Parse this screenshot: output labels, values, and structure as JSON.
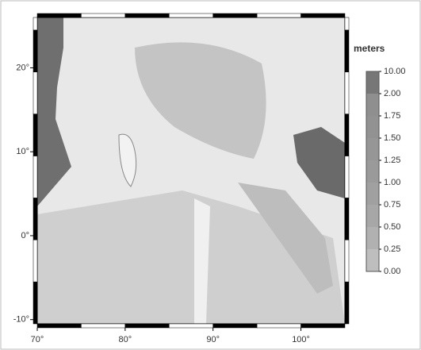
{
  "map": {
    "xlim": [
      70,
      105
    ],
    "ylim": [
      -10.5,
      26
    ],
    "xticks": [
      {
        "value": 70,
        "label": "70°"
      },
      {
        "value": 80,
        "label": "80°"
      },
      {
        "value": 90,
        "label": "90°"
      },
      {
        "value": 100,
        "label": "100°"
      }
    ],
    "yticks": [
      {
        "value": -10,
        "label": "-10°"
      },
      {
        "value": 0,
        "label": "0°"
      },
      {
        "value": 10,
        "label": "10°"
      },
      {
        "value": 20,
        "label": "20°"
      }
    ]
  },
  "colorbar": {
    "title": "meters",
    "ticks": [
      {
        "value": 10,
        "label": "10.00"
      },
      {
        "value": 2,
        "label": "2.00"
      },
      {
        "value": 1.75,
        "label": "1.75"
      },
      {
        "value": 1.5,
        "label": "1.50"
      },
      {
        "value": 1.25,
        "label": "1.25"
      },
      {
        "value": 1,
        "label": "1.00"
      },
      {
        "value": 0.75,
        "label": "0.75"
      },
      {
        "value": 0.5,
        "label": "0.50"
      },
      {
        "value": 0.25,
        "label": "0.25"
      },
      {
        "value": 0,
        "label": "0.00"
      }
    ]
  }
}
